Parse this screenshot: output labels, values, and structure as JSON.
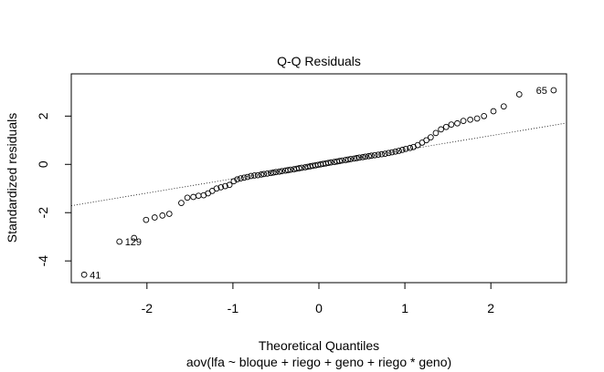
{
  "chart_data": {
    "type": "scatter",
    "title": "Q-Q Residuals",
    "xlabel": "Theoretical Quantiles",
    "ylabel": "Standardized residuals",
    "subtitle": "aov(lfa ~ bloque + riego + geno + riego * geno)",
    "xlim": [
      -2.88,
      2.88
    ],
    "ylim": [
      -4.9,
      3.75
    ],
    "x_ticks": [
      -2,
      -1,
      0,
      1,
      2
    ],
    "x_tick_labels": [
      "-2",
      "-1",
      "0",
      "1",
      "2"
    ],
    "y_ticks": [
      -4,
      -2,
      0,
      2
    ],
    "y_tick_labels": [
      "-4",
      "-2",
      "0",
      "2"
    ],
    "grid": false,
    "marker": "open-circle",
    "reference_line": {
      "style": "dotted",
      "slope": 0.595,
      "intercept": 0.0
    },
    "annotations": [
      {
        "label": "65",
        "x": 2.73,
        "y": 3.07
      },
      {
        "label": "129",
        "x": -2.32,
        "y": -3.2
      },
      {
        "label": "41",
        "x": -2.73,
        "y": -4.57
      }
    ],
    "points": [
      [
        -2.73,
        -4.57
      ],
      [
        -2.32,
        -3.2
      ],
      [
        -2.15,
        -3.05
      ],
      [
        -2.01,
        -2.3
      ],
      [
        -1.91,
        -2.2
      ],
      [
        -1.82,
        -2.12
      ],
      [
        -1.74,
        -2.05
      ],
      [
        -1.6,
        -1.6
      ],
      [
        -1.53,
        -1.38
      ],
      [
        -1.46,
        -1.35
      ],
      [
        -1.4,
        -1.3
      ],
      [
        -1.34,
        -1.28
      ],
      [
        -1.29,
        -1.2
      ],
      [
        -1.24,
        -1.1
      ],
      [
        -1.19,
        -1.0
      ],
      [
        -1.14,
        -0.95
      ],
      [
        -1.09,
        -0.9
      ],
      [
        -1.04,
        -0.85
      ],
      [
        -0.99,
        -0.7
      ],
      [
        -0.95,
        -0.62
      ],
      [
        -0.91,
        -0.58
      ],
      [
        -0.87,
        -0.55
      ],
      [
        -0.83,
        -0.52
      ],
      [
        -0.79,
        -0.48
      ],
      [
        -0.75,
        -0.46
      ],
      [
        -0.71,
        -0.45
      ],
      [
        -0.67,
        -0.42
      ],
      [
        -0.64,
        -0.4
      ],
      [
        -0.6,
        -0.38
      ],
      [
        -0.56,
        -0.36
      ],
      [
        -0.53,
        -0.34
      ],
      [
        -0.5,
        -0.32
      ],
      [
        -0.46,
        -0.3
      ],
      [
        -0.43,
        -0.28
      ],
      [
        -0.39,
        -0.26
      ],
      [
        -0.36,
        -0.24
      ],
      [
        -0.33,
        -0.22
      ],
      [
        -0.29,
        -0.2
      ],
      [
        -0.26,
        -0.18
      ],
      [
        -0.23,
        -0.16
      ],
      [
        -0.2,
        -0.14
      ],
      [
        -0.16,
        -0.12
      ],
      [
        -0.13,
        -0.1
      ],
      [
        -0.1,
        -0.08
      ],
      [
        -0.07,
        -0.06
      ],
      [
        -0.04,
        -0.04
      ],
      [
        -0.01,
        -0.02
      ],
      [
        0.02,
        0.0
      ],
      [
        0.05,
        0.02
      ],
      [
        0.08,
        0.04
      ],
      [
        0.11,
        0.06
      ],
      [
        0.14,
        0.08
      ],
      [
        0.18,
        0.1
      ],
      [
        0.21,
        0.12
      ],
      [
        0.24,
        0.14
      ],
      [
        0.27,
        0.16
      ],
      [
        0.31,
        0.18
      ],
      [
        0.34,
        0.2
      ],
      [
        0.37,
        0.22
      ],
      [
        0.41,
        0.24
      ],
      [
        0.44,
        0.26
      ],
      [
        0.47,
        0.28
      ],
      [
        0.51,
        0.3
      ],
      [
        0.54,
        0.32
      ],
      [
        0.58,
        0.34
      ],
      [
        0.61,
        0.36
      ],
      [
        0.65,
        0.38
      ],
      [
        0.69,
        0.4
      ],
      [
        0.73,
        0.42
      ],
      [
        0.77,
        0.44
      ],
      [
        0.81,
        0.47
      ],
      [
        0.85,
        0.5
      ],
      [
        0.89,
        0.53
      ],
      [
        0.93,
        0.56
      ],
      [
        0.97,
        0.6
      ],
      [
        1.01,
        0.64
      ],
      [
        1.06,
        0.68
      ],
      [
        1.1,
        0.72
      ],
      [
        1.15,
        0.8
      ],
      [
        1.2,
        0.9
      ],
      [
        1.25,
        1.0
      ],
      [
        1.3,
        1.12
      ],
      [
        1.36,
        1.3
      ],
      [
        1.42,
        1.45
      ],
      [
        1.48,
        1.55
      ],
      [
        1.54,
        1.65
      ],
      [
        1.61,
        1.7
      ],
      [
        1.68,
        1.8
      ],
      [
        1.76,
        1.85
      ],
      [
        1.84,
        1.9
      ],
      [
        1.92,
        2.0
      ],
      [
        2.03,
        2.2
      ],
      [
        2.15,
        2.4
      ],
      [
        2.33,
        2.9
      ],
      [
        2.73,
        3.07
      ]
    ]
  }
}
